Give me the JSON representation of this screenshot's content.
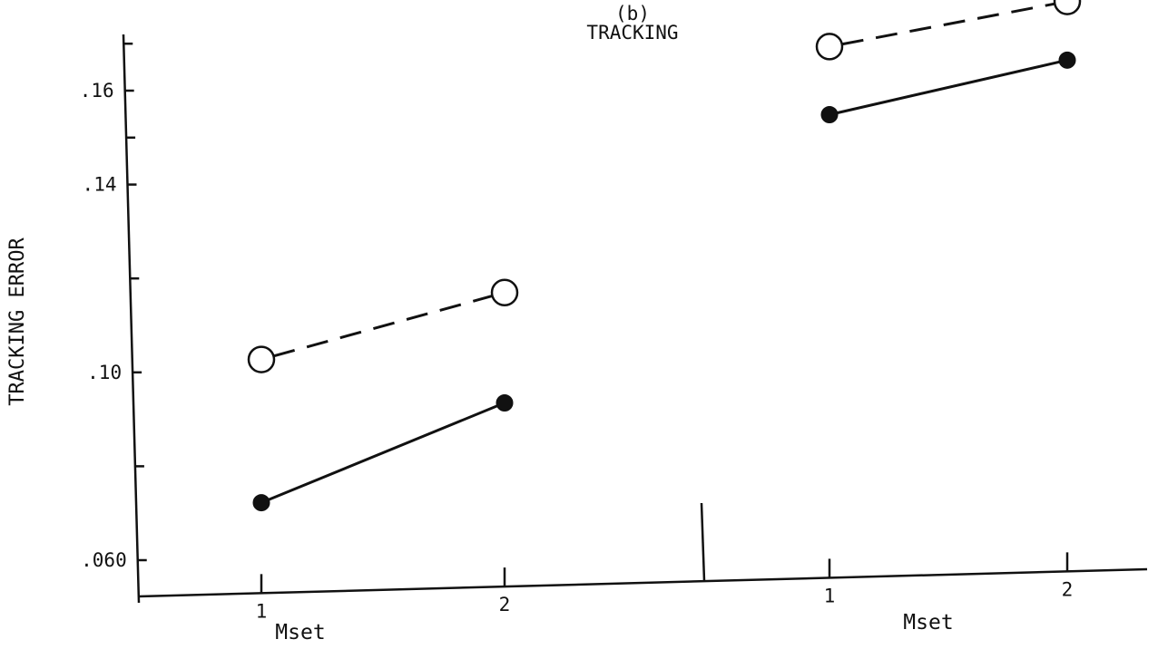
{
  "chart_data": {
    "type": "line",
    "title": "TRACKING",
    "panel_label": "(b)",
    "ylabel": "TRACKING ERROR",
    "xlabel": "Mset",
    "ylim": [
      0.05,
      0.18
    ],
    "y_tick_labels": [
      {
        "value": 0.06,
        "label": ".060"
      },
      {
        "value": 0.1,
        "label": ".10"
      },
      {
        "value": 0.14,
        "label": ".14"
      },
      {
        "value": 0.16,
        "label": ".16"
      }
    ],
    "y_minor_ticks": [
      0.08,
      0.12,
      0.15,
      0.17
    ],
    "groups": [
      {
        "categories": [
          "1",
          "2"
        ],
        "xlabel": "Mset",
        "series": [
          {
            "style": "dashed-open",
            "values": [
              0.104,
              0.117
            ]
          },
          {
            "style": "solid-filled",
            "values": [
              0.0735,
              0.0935
            ]
          }
        ]
      },
      {
        "categories": [
          "1",
          "2"
        ],
        "xlabel": "Mset",
        "series": [
          {
            "style": "dashed-open",
            "values": [
              0.17,
              0.179
            ]
          },
          {
            "style": "solid-filled",
            "values": [
              0.1555,
              0.1665
            ]
          }
        ]
      }
    ],
    "colors": {
      "ink": "#111111",
      "background": "#ffffff"
    }
  }
}
